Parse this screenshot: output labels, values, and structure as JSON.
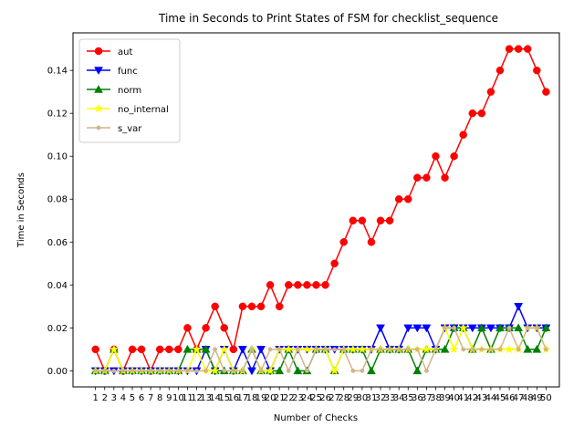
{
  "chart_data": {
    "type": "line",
    "title": "Time in Seconds to Print States of FSM for checklist_sequence",
    "xlabel": "Number of Checks",
    "ylabel": "Time in Seconds",
    "x": [
      1,
      2,
      3,
      4,
      5,
      6,
      7,
      8,
      9,
      10,
      11,
      12,
      13,
      14,
      15,
      16,
      17,
      18,
      19,
      20,
      21,
      22,
      23,
      24,
      25,
      26,
      27,
      28,
      29,
      30,
      31,
      32,
      33,
      34,
      35,
      36,
      37,
      38,
      39,
      40,
      41,
      42,
      43,
      44,
      45,
      46,
      47,
      48,
      49,
      50
    ],
    "xticks": [
      "1",
      "2",
      "3",
      "4",
      "5",
      "6",
      "7",
      "8",
      "9",
      "10",
      "11",
      "12",
      "13",
      "14",
      "15",
      "16",
      "17",
      "18",
      "19",
      "20",
      "21",
      "22",
      "23",
      "24",
      "25",
      "26",
      "27",
      "28",
      "29",
      "30",
      "31",
      "32",
      "33",
      "34",
      "35",
      "36",
      "37",
      "38",
      "39",
      "40",
      "41",
      "42",
      "43",
      "44",
      "45",
      "46",
      "47",
      "48",
      "49",
      "50"
    ],
    "yticks": [
      0.0,
      0.02,
      0.04,
      0.06,
      0.08,
      0.1,
      0.12,
      0.14
    ],
    "ytick_labels": [
      "0.00",
      "0.02",
      "0.04",
      "0.06",
      "0.08",
      "0.10",
      "0.12",
      "0.14"
    ],
    "ylim": [
      -0.0075,
      0.1575
    ],
    "xlim": [
      -1.45,
      51.45
    ],
    "grid": false,
    "legend_position": "upper-left",
    "series": [
      {
        "name": "aut",
        "color": "#ff0000",
        "marker": "circle",
        "values": [
          0.01,
          0,
          0.01,
          0,
          0.01,
          0.01,
          0,
          0.01,
          0.01,
          0.01,
          0.02,
          0.01,
          0.02,
          0.03,
          0.02,
          0.01,
          0.03,
          0.03,
          0.03,
          0.04,
          0.03,
          0.04,
          0.04,
          0.04,
          0.04,
          0.04,
          0.05,
          0.06,
          0.07,
          0.07,
          0.06,
          0.07,
          0.07,
          0.08,
          0.08,
          0.09,
          0.09,
          0.1,
          0.09,
          0.1,
          0.11,
          0.12,
          0.12,
          0.13,
          0.14,
          0.15,
          0.15,
          0.15,
          0.14,
          0.13
        ]
      },
      {
        "name": "func",
        "color": "#0000ff",
        "marker": "triangle-down",
        "values": [
          0,
          0,
          0,
          0,
          0,
          0,
          0,
          0,
          0,
          0,
          0,
          0,
          0.01,
          0,
          0.01,
          0,
          0.01,
          0,
          0.01,
          0,
          0.01,
          0.01,
          0.01,
          0.01,
          0.01,
          0.01,
          0.01,
          0.01,
          0.01,
          0.01,
          0.01,
          0.02,
          0.01,
          0.01,
          0.02,
          0.02,
          0.02,
          0.01,
          0.02,
          0.02,
          0.02,
          0.02,
          0.02,
          0.02,
          0.02,
          0.02,
          0.03,
          0.02,
          0.02,
          0.02
        ]
      },
      {
        "name": "norm",
        "color": "#008000",
        "marker": "triangle-up",
        "values": [
          0,
          0,
          0.01,
          0,
          0,
          0,
          0,
          0,
          0,
          0,
          0.01,
          0.01,
          0.01,
          0,
          0,
          0,
          0,
          0.01,
          0,
          0,
          0,
          0.01,
          0,
          0,
          0.01,
          0.01,
          0,
          0.01,
          0.01,
          0.01,
          0,
          0.01,
          0.01,
          0.01,
          0.01,
          0,
          0.01,
          0.01,
          0.01,
          0.02,
          0.02,
          0.01,
          0.02,
          0.01,
          0.02,
          0.02,
          0.02,
          0.01,
          0.01,
          0.02
        ]
      },
      {
        "name": "no_internal",
        "color": "#ffff00",
        "marker": "star",
        "values": [
          0,
          0,
          0.01,
          0,
          0,
          0,
          0,
          0,
          0,
          0,
          0,
          0.01,
          0,
          0,
          0.01,
          0,
          0,
          0.01,
          0,
          0,
          0.01,
          0.01,
          0.01,
          0.01,
          0.01,
          0.01,
          0,
          0.01,
          0.01,
          0.01,
          0.01,
          0.01,
          0.01,
          0.01,
          0.01,
          0.01,
          0.01,
          0.01,
          0.02,
          0.01,
          0.02,
          0.01,
          0.01,
          0.01,
          0.01,
          0.01,
          0.01,
          0.02,
          0.02,
          0.01
        ]
      },
      {
        "name": "s_var",
        "color": "#d2b48c",
        "marker": "dot",
        "values": [
          0,
          0,
          0,
          0,
          0,
          0,
          0,
          0,
          0,
          0,
          0,
          0,
          0,
          0.01,
          0,
          0,
          0,
          0.01,
          0,
          0.01,
          0.01,
          0,
          0.01,
          0,
          0.01,
          0.01,
          0.01,
          0.01,
          0,
          0,
          0.01,
          0.01,
          0.01,
          0.01,
          0.01,
          0.01,
          0,
          0.01,
          0.02,
          0.02,
          0.01,
          0.01,
          0.01,
          0.01,
          0.01,
          0.02,
          0.01,
          0.02,
          0.02,
          0.01
        ]
      }
    ]
  }
}
